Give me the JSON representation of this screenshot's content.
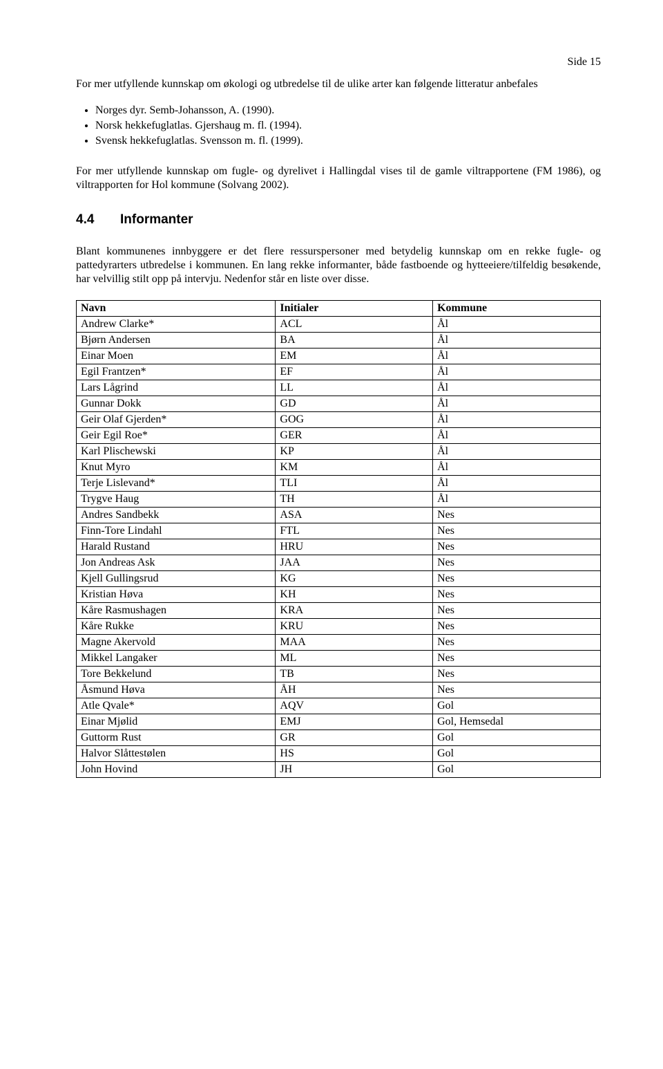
{
  "page_number": "Side 15",
  "intro_para": "For mer utfyllende kunnskap om økologi og utbredelse til de ulike arter kan følgende litteratur anbefales",
  "bullets": [
    "Norges dyr. Semb-Johansson, A. (1990).",
    "Norsk hekkefuglatlas. Gjershaug m. fl. (1994).",
    "Svensk hekkefuglatlas. Svensson m. fl. (1999)."
  ],
  "para2": "For mer utfyllende kunnskap om fugle- og dyrelivet i Hallingdal vises til de gamle viltrapportene (FM 1986), og viltrapporten for Hol kommune (Solvang 2002).",
  "section": {
    "number": "4.4",
    "title": "Informanter"
  },
  "para3": "Blant kommunenes innbyggere er det flere ressurspersoner med betydelig kunnskap om en rekke fugle- og pattedyrarters utbredelse i kommunen. En lang rekke informanter, både fastboende og hytteeiere/tilfeldig besøkende, har velvillig stilt opp på intervju. Nedenfor står en liste over disse.",
  "table": {
    "headers": [
      "Navn",
      "Initialer",
      "Kommune"
    ],
    "rows": [
      [
        "Andrew Clarke*",
        "ACL",
        "Ål"
      ],
      [
        "Bjørn Andersen",
        "BA",
        "Ål"
      ],
      [
        "Einar Moen",
        "EM",
        "Ål"
      ],
      [
        "Egil Frantzen*",
        "EF",
        "Ål"
      ],
      [
        "Lars Lågrind",
        "LL",
        "Ål"
      ],
      [
        "Gunnar Dokk",
        "GD",
        "Ål"
      ],
      [
        "Geir Olaf Gjerden*",
        "GOG",
        "Ål"
      ],
      [
        "Geir Egil Roe*",
        "GER",
        "Ål"
      ],
      [
        "Karl Plischewski",
        "KP",
        "Ål"
      ],
      [
        "Knut Myro",
        "KM",
        "Ål"
      ],
      [
        "Terje Lislevand*",
        "TLI",
        "Ål"
      ],
      [
        "Trygve Haug",
        "TH",
        "Ål"
      ],
      [
        "Andres Sandbekk",
        "ASA",
        "Nes"
      ],
      [
        "Finn-Tore Lindahl",
        "FTL",
        "Nes"
      ],
      [
        "Harald Rustand",
        "HRU",
        "Nes"
      ],
      [
        "Jon Andreas Ask",
        "JAA",
        "Nes"
      ],
      [
        "Kjell Gullingsrud",
        "KG",
        "Nes"
      ],
      [
        "Kristian Høva",
        "KH",
        "Nes"
      ],
      [
        "Kåre Rasmushagen",
        "KRA",
        "Nes"
      ],
      [
        "Kåre Rukke",
        "KRU",
        "Nes"
      ],
      [
        "Magne Akervold",
        "MAA",
        "Nes"
      ],
      [
        "Mikkel Langaker",
        "ML",
        "Nes"
      ],
      [
        "Tore Bekkelund",
        "TB",
        "Nes"
      ],
      [
        "Åsmund Høva",
        "ÅH",
        "Nes"
      ],
      [
        "Atle Qvale*",
        "AQV",
        "Gol"
      ],
      [
        "Einar Mjølid",
        "EMJ",
        "Gol, Hemsedal"
      ],
      [
        "Guttorm Rust",
        "GR",
        "Gol"
      ],
      [
        "Halvor Slåttestølen",
        "HS",
        "Gol"
      ],
      [
        "John Hovind",
        "JH",
        "Gol"
      ]
    ]
  }
}
